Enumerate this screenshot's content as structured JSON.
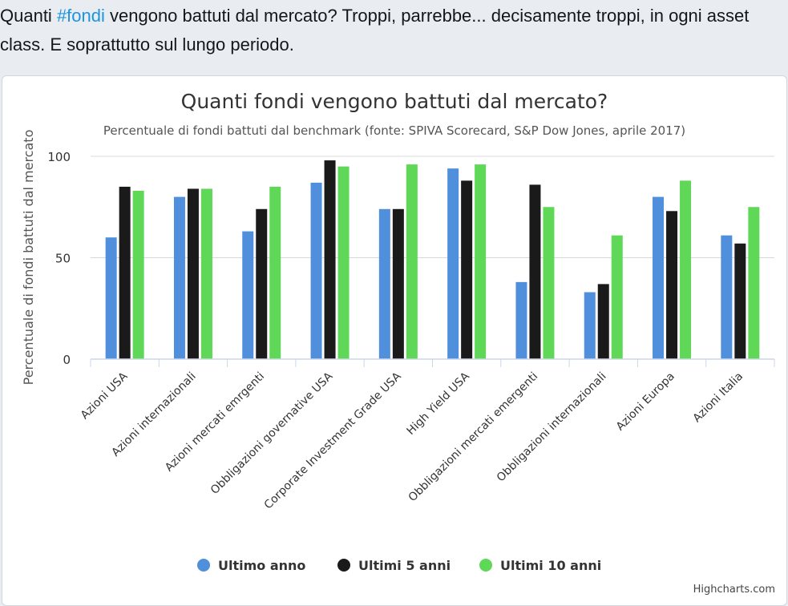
{
  "tweet": {
    "text_before": "Quanti ",
    "hashtag": "#fondi",
    "text_after": " vengono battuti dal mercato? Troppi, parrebbe... decisamente troppi, in ogni asset class. E soprattutto sul lungo periodo."
  },
  "chart_data": {
    "type": "bar",
    "title": "Quanti fondi vengono battuti dal mercato?",
    "subtitle": "Percentuale di fondi battuti dal benchmark (fonte: SPIVA Scorecard, S&P Dow Jones, aprile 2017)",
    "ylabel": "Percentuale di fondi battuti dal mercato",
    "xlabel": "",
    "ylim": [
      0,
      100
    ],
    "yticks": [
      "0",
      "50",
      "100"
    ],
    "grid": true,
    "legend_position": "bottom-center",
    "credits": "Highcharts.com",
    "categories": [
      "Azioni USA",
      "Azioni internazionali",
      "Azioni mercati emrgenti",
      "Obbligazioni governative USA",
      "Corporate Investment Grade USA",
      "High Yield USA",
      "Obbligazioni mercati emergenti",
      "Obbligazioni internazionali",
      "Azioni Europa",
      "Azioni Italia"
    ],
    "series": [
      {
        "name": "Ultimo anno",
        "color": "#4f8fdc",
        "values": [
          60,
          80,
          63,
          87,
          74,
          94,
          38,
          33,
          80,
          61
        ]
      },
      {
        "name": "Ultimi 5 anni",
        "color": "#1a1a1a",
        "values": [
          85,
          84,
          74,
          98,
          74,
          88,
          86,
          37,
          73,
          57
        ]
      },
      {
        "name": "Ultimi 10 anni",
        "color": "#5fd857",
        "values": [
          83,
          84,
          85,
          95,
          96,
          96,
          75,
          61,
          88,
          75
        ]
      }
    ]
  }
}
